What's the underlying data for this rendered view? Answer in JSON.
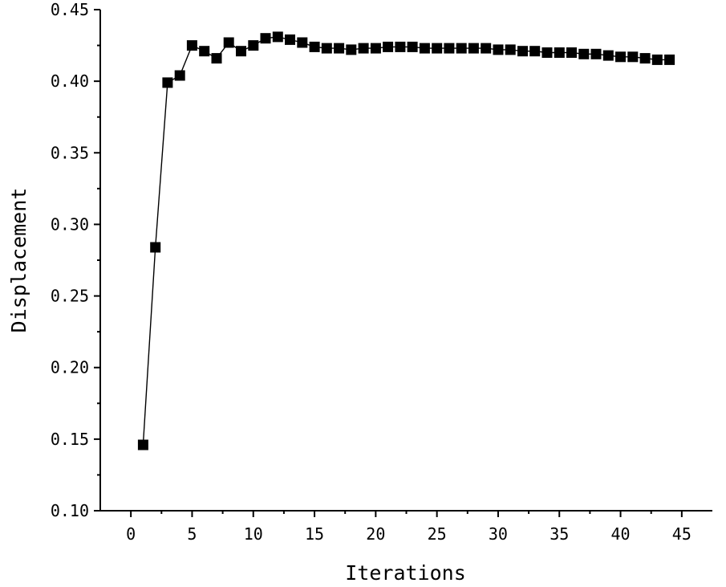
{
  "chart_data": {
    "type": "line",
    "title": "",
    "xlabel": "Iterations",
    "ylabel": "Displacement",
    "xlim": [
      -2.5,
      47.5
    ],
    "ylim": [
      0.1,
      0.45
    ],
    "x_ticks": [
      0,
      5,
      10,
      15,
      20,
      25,
      30,
      35,
      40,
      45
    ],
    "x_tick_labels": [
      "0",
      "5",
      "10",
      "15",
      "20",
      "25",
      "30",
      "35",
      "40",
      "45"
    ],
    "y_ticks": [
      0.1,
      0.15,
      0.2,
      0.25,
      0.3,
      0.35,
      0.4,
      0.45
    ],
    "y_tick_labels": [
      "0.10",
      "0.15",
      "0.20",
      "0.25",
      "0.30",
      "0.35",
      "0.40",
      "0.45"
    ],
    "grid": false,
    "legend": false,
    "marker": "square",
    "color": "#000000",
    "series": [
      {
        "x": [
          1,
          2,
          3,
          4,
          5,
          6,
          7,
          8,
          9,
          10,
          11,
          12,
          13,
          14,
          15,
          16,
          17,
          18,
          19,
          20,
          21,
          22,
          23,
          24,
          25,
          26,
          27,
          28,
          29,
          30,
          31,
          32,
          33,
          34,
          35,
          36,
          37,
          38,
          39,
          40,
          41,
          42,
          43,
          44
        ],
        "values": [
          0.146,
          0.284,
          0.399,
          0.404,
          0.425,
          0.421,
          0.416,
          0.427,
          0.421,
          0.425,
          0.43,
          0.431,
          0.429,
          0.427,
          0.424,
          0.423,
          0.423,
          0.422,
          0.423,
          0.423,
          0.424,
          0.424,
          0.424,
          0.423,
          0.423,
          0.423,
          0.423,
          0.423,
          0.423,
          0.422,
          0.422,
          0.421,
          0.421,
          0.42,
          0.42,
          0.42,
          0.419,
          0.419,
          0.418,
          0.417,
          0.417,
          0.416,
          0.415,
          0.415
        ]
      }
    ]
  }
}
